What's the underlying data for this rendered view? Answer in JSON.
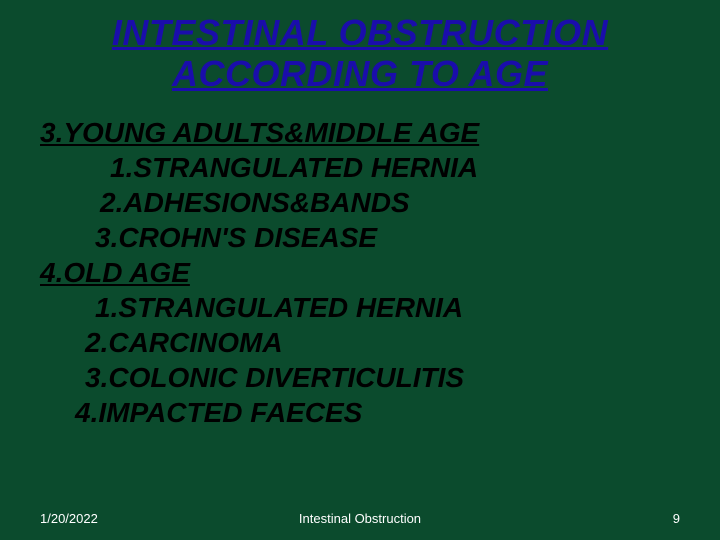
{
  "slide": {
    "background_color": "#0b4b2d",
    "title": {
      "line1": "INTESTINAL OBSTRUCTION",
      "line2": "ACCORDING  TO AGE",
      "color": "#1a0dab",
      "fontsize": 36,
      "underline": true,
      "italic": true,
      "bold": true
    },
    "body": {
      "color": "#000000",
      "fontsize": 28,
      "italic": true,
      "bold": true,
      "sections": [
        {
          "heading": "3.YOUNG ADULTS&MIDDLE AGE",
          "items": [
            "1.STRANGULATED HERNIA",
            "2.ADHESIONS&BANDS",
            "3.CROHN'S DISEASE"
          ]
        },
        {
          "heading": "4.OLD AGE",
          "items": [
            "1.STRANGULATED HERNIA",
            "2.CARCINOMA",
            "3.COLONIC DIVERTICULITIS",
            "4.IMPACTED FAECES"
          ]
        }
      ]
    },
    "footer": {
      "date": "1/20/2022",
      "title": "Intestinal Obstruction",
      "page": "9",
      "color": "#ffffff",
      "fontsize": 13
    }
  }
}
